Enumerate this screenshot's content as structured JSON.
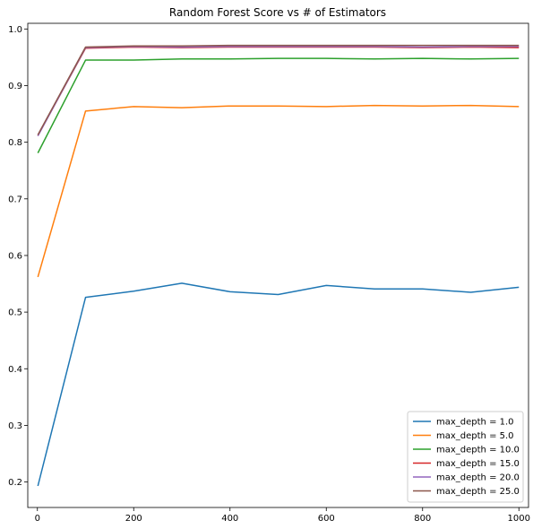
{
  "chart_data": {
    "type": "line",
    "title": "Random Forest Score vs # of Estimators",
    "xlabel": "",
    "ylabel": "",
    "xlim": [
      -20,
      1020
    ],
    "ylim": [
      0.155,
      1.01
    ],
    "x_ticks": [
      0,
      200,
      400,
      600,
      800,
      1000
    ],
    "y_ticks": [
      0.2,
      0.3,
      0.4,
      0.5,
      0.6,
      0.7,
      0.8,
      0.9,
      1.0
    ],
    "x_tick_labels": [
      "0",
      "200",
      "400",
      "600",
      "800",
      "1000"
    ],
    "y_tick_labels": [
      "0.2",
      "0.3",
      "0.4",
      "0.5",
      "0.6",
      "0.7",
      "0.8",
      "0.9",
      "1.0"
    ],
    "grid": false,
    "legend_position": "bottom-right",
    "x": [
      1,
      100,
      200,
      300,
      400,
      500,
      600,
      700,
      800,
      900,
      1000
    ],
    "series": [
      {
        "name": "max_depth = 1.0",
        "color": "#1f77b4",
        "values": [
          0.193,
          0.526,
          0.537,
          0.551,
          0.536,
          0.531,
          0.547,
          0.541,
          0.541,
          0.535,
          0.544
        ]
      },
      {
        "name": "max_depth = 5.0",
        "color": "#ff7f0e",
        "values": [
          0.562,
          0.855,
          0.863,
          0.861,
          0.864,
          0.864,
          0.863,
          0.865,
          0.864,
          0.865,
          0.863
        ]
      },
      {
        "name": "max_depth = 10.0",
        "color": "#2ca02c",
        "values": [
          0.781,
          0.945,
          0.945,
          0.947,
          0.947,
          0.948,
          0.948,
          0.947,
          0.948,
          0.947,
          0.948
        ]
      },
      {
        "name": "max_depth = 15.0",
        "color": "#d62728",
        "values": [
          0.812,
          0.966,
          0.968,
          0.967,
          0.968,
          0.968,
          0.968,
          0.968,
          0.967,
          0.968,
          0.967
        ]
      },
      {
        "name": "max_depth = 20.0",
        "color": "#9467bd",
        "values": [
          0.811,
          0.967,
          0.969,
          0.968,
          0.969,
          0.969,
          0.969,
          0.969,
          0.968,
          0.969,
          0.969
        ]
      },
      {
        "name": "max_depth = 25.0",
        "color": "#8c564b",
        "values": [
          0.813,
          0.968,
          0.97,
          0.97,
          0.971,
          0.971,
          0.971,
          0.971,
          0.971,
          0.971,
          0.971
        ]
      }
    ]
  }
}
